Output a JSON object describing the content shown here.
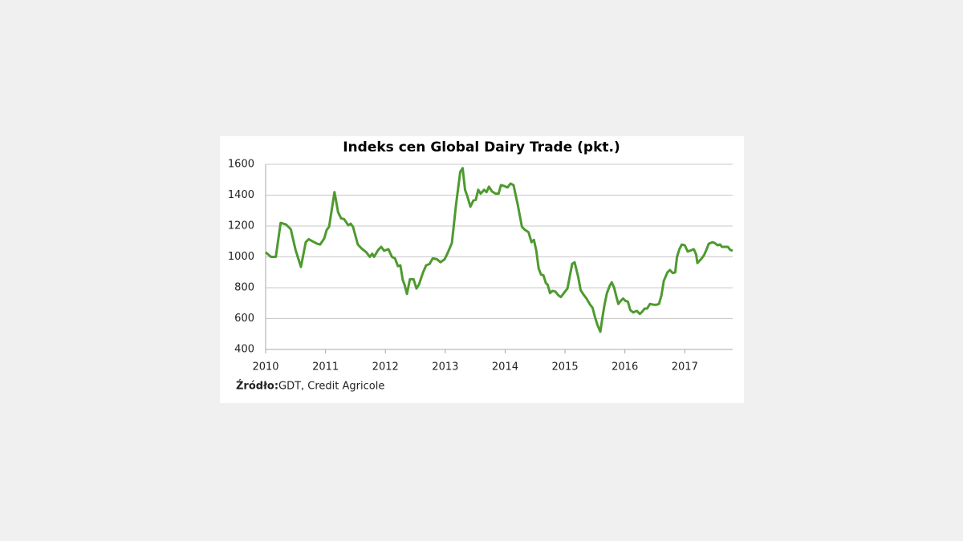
{
  "chart_data": {
    "type": "line",
    "title": "Indeks cen Global Dairy Trade (pkt.)",
    "source_label": "Źródło:",
    "source": "GDT, Credit Agricole",
    "xlim": [
      2010,
      2017.8
    ],
    "xticks": [
      2010,
      2011,
      2012,
      2013,
      2014,
      2015,
      2016,
      2017
    ],
    "ylim": [
      400,
      1600
    ],
    "yticks": [
      400,
      600,
      800,
      1000,
      1200,
      1400,
      1600
    ],
    "grid": true,
    "x": [
      2010.0,
      2010.09,
      2010.17,
      2010.25,
      2010.34,
      2010.42,
      2010.5,
      2010.59,
      2010.67,
      2010.72,
      2010.79,
      2010.86,
      2010.91,
      2010.98,
      2011.02,
      2011.06,
      2011.15,
      2011.21,
      2011.26,
      2011.31,
      2011.38,
      2011.42,
      2011.46,
      2011.54,
      2011.6,
      2011.68,
      2011.74,
      2011.78,
      2011.81,
      2011.88,
      2011.93,
      2011.98,
      2012.05,
      2012.11,
      2012.16,
      2012.21,
      2012.25,
      2012.29,
      2012.32,
      2012.36,
      2012.41,
      2012.47,
      2012.52,
      2012.56,
      2012.63,
      2012.68,
      2012.74,
      2012.79,
      2012.86,
      2012.92,
      2012.99,
      2013.04,
      2013.11,
      2013.18,
      2013.25,
      2013.29,
      2013.33,
      2013.37,
      2013.42,
      2013.47,
      2013.51,
      2013.55,
      2013.59,
      2013.65,
      2013.69,
      2013.73,
      2013.78,
      2013.84,
      2013.89,
      2013.93,
      2013.98,
      2014.04,
      2014.09,
      2014.14,
      2014.21,
      2014.28,
      2014.33,
      2014.39,
      2014.44,
      2014.48,
      2014.52,
      2014.56,
      2014.6,
      2014.64,
      2014.68,
      2014.71,
      2014.75,
      2014.79,
      2014.84,
      2014.89,
      2014.93,
      2014.99,
      2015.04,
      2015.08,
      2015.12,
      2015.16,
      2015.22,
      2015.26,
      2015.31,
      2015.36,
      2015.42,
      2015.46,
      2015.5,
      2015.54,
      2015.59,
      2015.63,
      2015.66,
      2015.7,
      2015.75,
      2015.78,
      2015.82,
      2015.86,
      2015.89,
      2015.93,
      2015.97,
      2016.01,
      2016.05,
      2016.09,
      2016.14,
      2016.2,
      2016.25,
      2016.29,
      2016.33,
      2016.37,
      2016.42,
      2016.48,
      2016.53,
      2016.57,
      2016.61,
      2016.65,
      2016.71,
      2016.75,
      2016.8,
      2016.84,
      2016.87,
      2016.91,
      2016.95,
      2017.0,
      2017.05,
      2017.09,
      2017.15,
      2017.19,
      2017.21,
      2017.27,
      2017.32,
      2017.36,
      2017.4,
      2017.46,
      2017.5,
      2017.55,
      2017.59,
      2017.62,
      2017.67,
      2017.72,
      2017.76,
      2017.8
    ],
    "series": [
      {
        "color": "#4e9a2f",
        "values": [
          1030,
          1000,
          1000,
          1220,
          1210,
          1180,
          1045,
          935,
          1095,
          1115,
          1100,
          1085,
          1080,
          1120,
          1175,
          1195,
          1420,
          1290,
          1250,
          1245,
          1205,
          1215,
          1195,
          1080,
          1055,
          1030,
          1000,
          1020,
          1000,
          1045,
          1065,
          1040,
          1050,
          1000,
          990,
          940,
          945,
          850,
          820,
          760,
          855,
          855,
          795,
          820,
          900,
          945,
          955,
          990,
          985,
          965,
          985,
          1025,
          1090,
          1340,
          1550,
          1575,
          1435,
          1390,
          1325,
          1365,
          1370,
          1435,
          1410,
          1435,
          1420,
          1455,
          1425,
          1410,
          1410,
          1465,
          1460,
          1450,
          1475,
          1465,
          1340,
          1195,
          1175,
          1160,
          1095,
          1110,
          1040,
          925,
          885,
          880,
          830,
          820,
          765,
          780,
          775,
          750,
          740,
          770,
          795,
          875,
          955,
          965,
          870,
          785,
          755,
          730,
          690,
          670,
          610,
          560,
          515,
          620,
          690,
          765,
          815,
          835,
          800,
          740,
          695,
          715,
          730,
          715,
          710,
          655,
          640,
          650,
          630,
          645,
          665,
          665,
          695,
          690,
          690,
          695,
          750,
          845,
          900,
          915,
          895,
          900,
          1000,
          1050,
          1080,
          1075,
          1035,
          1040,
          1050,
          1015,
          960,
          985,
          1010,
          1045,
          1085,
          1095,
          1090,
          1075,
          1080,
          1065,
          1065,
          1065,
          1045,
          1040
        ]
      }
    ]
  }
}
